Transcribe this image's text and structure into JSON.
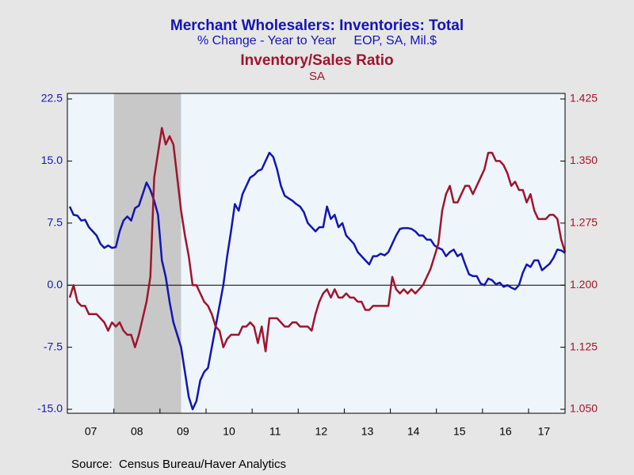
{
  "chart_data": {
    "type": "line",
    "title": "Merchant Wholesalers: Inventories: Total",
    "subtitle": "% Change - Year to Year     EOP, SA, Mil.$",
    "title2": "Inventory/Sales Ratio",
    "subtitle2": "SA",
    "source": "Source:  Census Bureau/Haver Analytics",
    "categories": [
      null,
      null,
      null,
      null,
      null,
      null,
      "07",
      null,
      null,
      null,
      null,
      null,
      null,
      null,
      null,
      null,
      null,
      null,
      "08",
      null,
      null,
      null,
      null,
      null,
      null,
      null,
      null,
      null,
      null,
      null,
      "09",
      null,
      null,
      null,
      null,
      null,
      null,
      null,
      null,
      null,
      null,
      null,
      "10",
      null,
      null,
      null,
      null,
      null,
      null,
      null,
      null,
      null,
      null,
      null,
      "11",
      null,
      null,
      null,
      null,
      null,
      null,
      null,
      null,
      null,
      null,
      null,
      "12",
      null,
      null,
      null,
      null,
      null,
      null,
      null,
      null,
      null,
      null,
      null,
      "13",
      null,
      null,
      null,
      null,
      null,
      null,
      null,
      null,
      null,
      null,
      null,
      "14",
      null,
      null,
      null,
      null,
      null,
      null,
      null,
      null,
      null,
      null,
      null,
      "15",
      null,
      null,
      null,
      null,
      null,
      null,
      null,
      null,
      null,
      null,
      null,
      "16",
      null,
      null,
      null,
      null,
      null,
      null,
      null,
      null,
      null,
      "17",
      null,
      null,
      null,
      null,
      null
    ],
    "series": [
      {
        "color": "#1414b4",
        "values": [
          9.5,
          8.5,
          8.4,
          7.8,
          7.9,
          7.0,
          6.5,
          6.0,
          5.0,
          4.5,
          4.8,
          4.5,
          4.6,
          6.5,
          7.8,
          8.3,
          7.8,
          9.3,
          9.6,
          11.0,
          12.4,
          11.5,
          10.2,
          8.5,
          3.0,
          1.0,
          -2.0,
          -4.5,
          -6.0,
          -7.5,
          -10.5,
          -13.5,
          -15.0,
          -14.0,
          -11.5,
          -10.5,
          -10.0,
          -7.5,
          -5.0,
          -2.5,
          0.0,
          3.5,
          6.5,
          9.8,
          9.0,
          11.0,
          12.0,
          13.0,
          13.3,
          13.8,
          14.0,
          15.0,
          16.0,
          15.5,
          14.0,
          12.0,
          10.8,
          10.5,
          10.2,
          9.8,
          9.5,
          8.8,
          7.5,
          7.0,
          6.5,
          7.0,
          7.0,
          9.5,
          8.0,
          8.5,
          7.0,
          7.5,
          6.0,
          5.5,
          5.0,
          4.0,
          3.5,
          3.0,
          2.5,
          3.5,
          3.5,
          3.8,
          3.6,
          4.0,
          5.0,
          6.0,
          6.8,
          6.9,
          6.9,
          6.8,
          6.5,
          6.0,
          6.0,
          5.5,
          5.5,
          4.8,
          4.5,
          4.3,
          3.5,
          4.0,
          4.3,
          3.5,
          3.8,
          2.5,
          1.3,
          1.1,
          1.1,
          0.2,
          0.0,
          0.8,
          0.6,
          0.1,
          0.3,
          -0.2,
          0.0,
          -0.3,
          -0.5,
          0.0,
          1.5,
          2.5,
          2.2,
          3.0,
          3.0,
          1.8,
          2.2,
          2.6,
          3.3,
          4.3,
          4.2,
          3.9
        ]
      },
      {
        "color": "#a0142d",
        "axis": "y2",
        "values": [
          1.185,
          1.2,
          1.18,
          1.175,
          1.175,
          1.165,
          1.165,
          1.165,
          1.16,
          1.155,
          1.145,
          1.155,
          1.15,
          1.155,
          1.145,
          1.14,
          1.14,
          1.125,
          1.14,
          1.16,
          1.18,
          1.21,
          1.33,
          1.36,
          1.39,
          1.37,
          1.38,
          1.37,
          1.33,
          1.29,
          1.26,
          1.235,
          1.2,
          1.2,
          1.19,
          1.18,
          1.175,
          1.165,
          1.15,
          1.145,
          1.125,
          1.135,
          1.14,
          1.14,
          1.14,
          1.15,
          1.15,
          1.155,
          1.15,
          1.13,
          1.15,
          1.12,
          1.16,
          1.16,
          1.16,
          1.155,
          1.15,
          1.15,
          1.155,
          1.155,
          1.15,
          1.15,
          1.15,
          1.145,
          1.165,
          1.18,
          1.19,
          1.195,
          1.185,
          1.195,
          1.185,
          1.185,
          1.19,
          1.185,
          1.185,
          1.18,
          1.18,
          1.17,
          1.17,
          1.175,
          1.175,
          1.175,
          1.175,
          1.175,
          1.21,
          1.195,
          1.19,
          1.195,
          1.19,
          1.195,
          1.19,
          1.195,
          1.2,
          1.21,
          1.22,
          1.235,
          1.25,
          1.29,
          1.31,
          1.32,
          1.3,
          1.3,
          1.31,
          1.32,
          1.32,
          1.31,
          1.32,
          1.33,
          1.34,
          1.36,
          1.36,
          1.35,
          1.35,
          1.345,
          1.335,
          1.32,
          1.325,
          1.315,
          1.315,
          1.3,
          1.31,
          1.29,
          1.28,
          1.28,
          1.28,
          1.285,
          1.285,
          1.28,
          1.255,
          1.24
        ]
      }
    ],
    "ylim": [
      -15,
      22.5
    ],
    "yticks": [
      {
        "value": -15,
        "label": "-15.0"
      },
      -7.5,
      {
        "value": 0,
        "label": "0.0"
      },
      7.5,
      {
        "value": 15,
        "label": "15.0"
      },
      22.5
    ],
    "y2lim": [
      1.05,
      1.425
    ],
    "y2ticks": [
      {
        "value": 1.05,
        "label": "1.050"
      },
      1.125,
      {
        "value": 1.2,
        "label": "1.200"
      },
      1.275,
      {
        "value": 1.35,
        "label": "1.350"
      },
      1.425
    ]
  }
}
